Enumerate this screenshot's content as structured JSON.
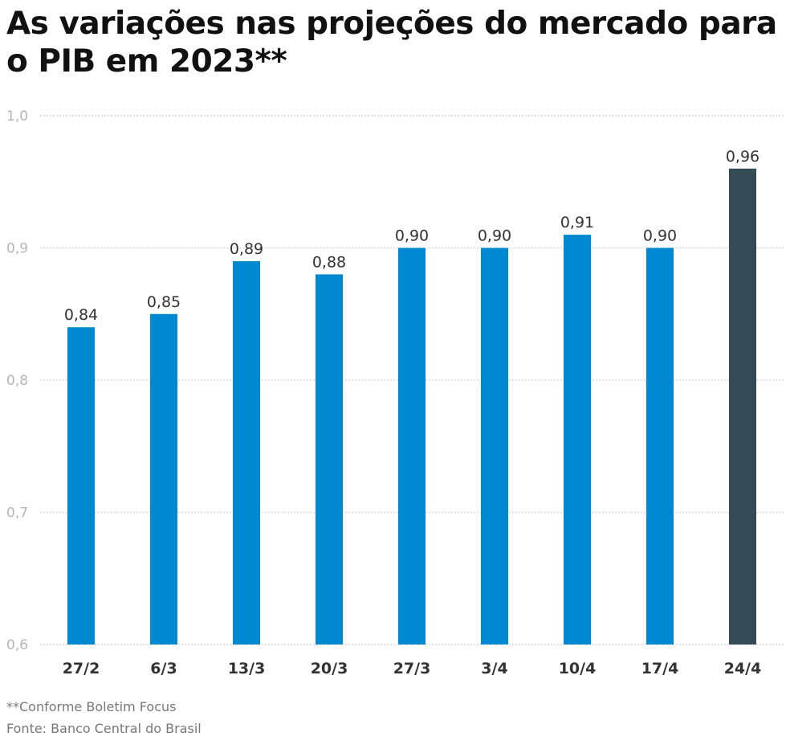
{
  "chart_data": {
    "type": "bar",
    "title": "As variações nas projeções do mercado para o PIB em 2023**",
    "categories": [
      "27/2",
      "6/3",
      "13/3",
      "20/3",
      "27/3",
      "3/4",
      "10/4",
      "17/4",
      "24/4"
    ],
    "values": [
      0.84,
      0.85,
      0.89,
      0.88,
      0.9,
      0.9,
      0.91,
      0.9,
      0.96
    ],
    "data_labels": [
      "0,84",
      "0,85",
      "0,89",
      "0,88",
      "0,90",
      "0,90",
      "0,91",
      "0,90",
      "0,96"
    ],
    "ylim": [
      0.6,
      1.0
    ],
    "yticks": [
      0.6,
      0.7,
      0.8,
      0.9,
      1.0
    ],
    "ytick_labels": [
      "0,6",
      "0,7",
      "0,8",
      "0,9",
      "1,0"
    ],
    "grid": true,
    "colors": {
      "bar": "#0088d1",
      "highlight": "#344a55",
      "highlight_index": 8
    }
  },
  "footnote": "**Conforme Boletim Focus",
  "source": "Fonte: Banco Central do Brasil"
}
